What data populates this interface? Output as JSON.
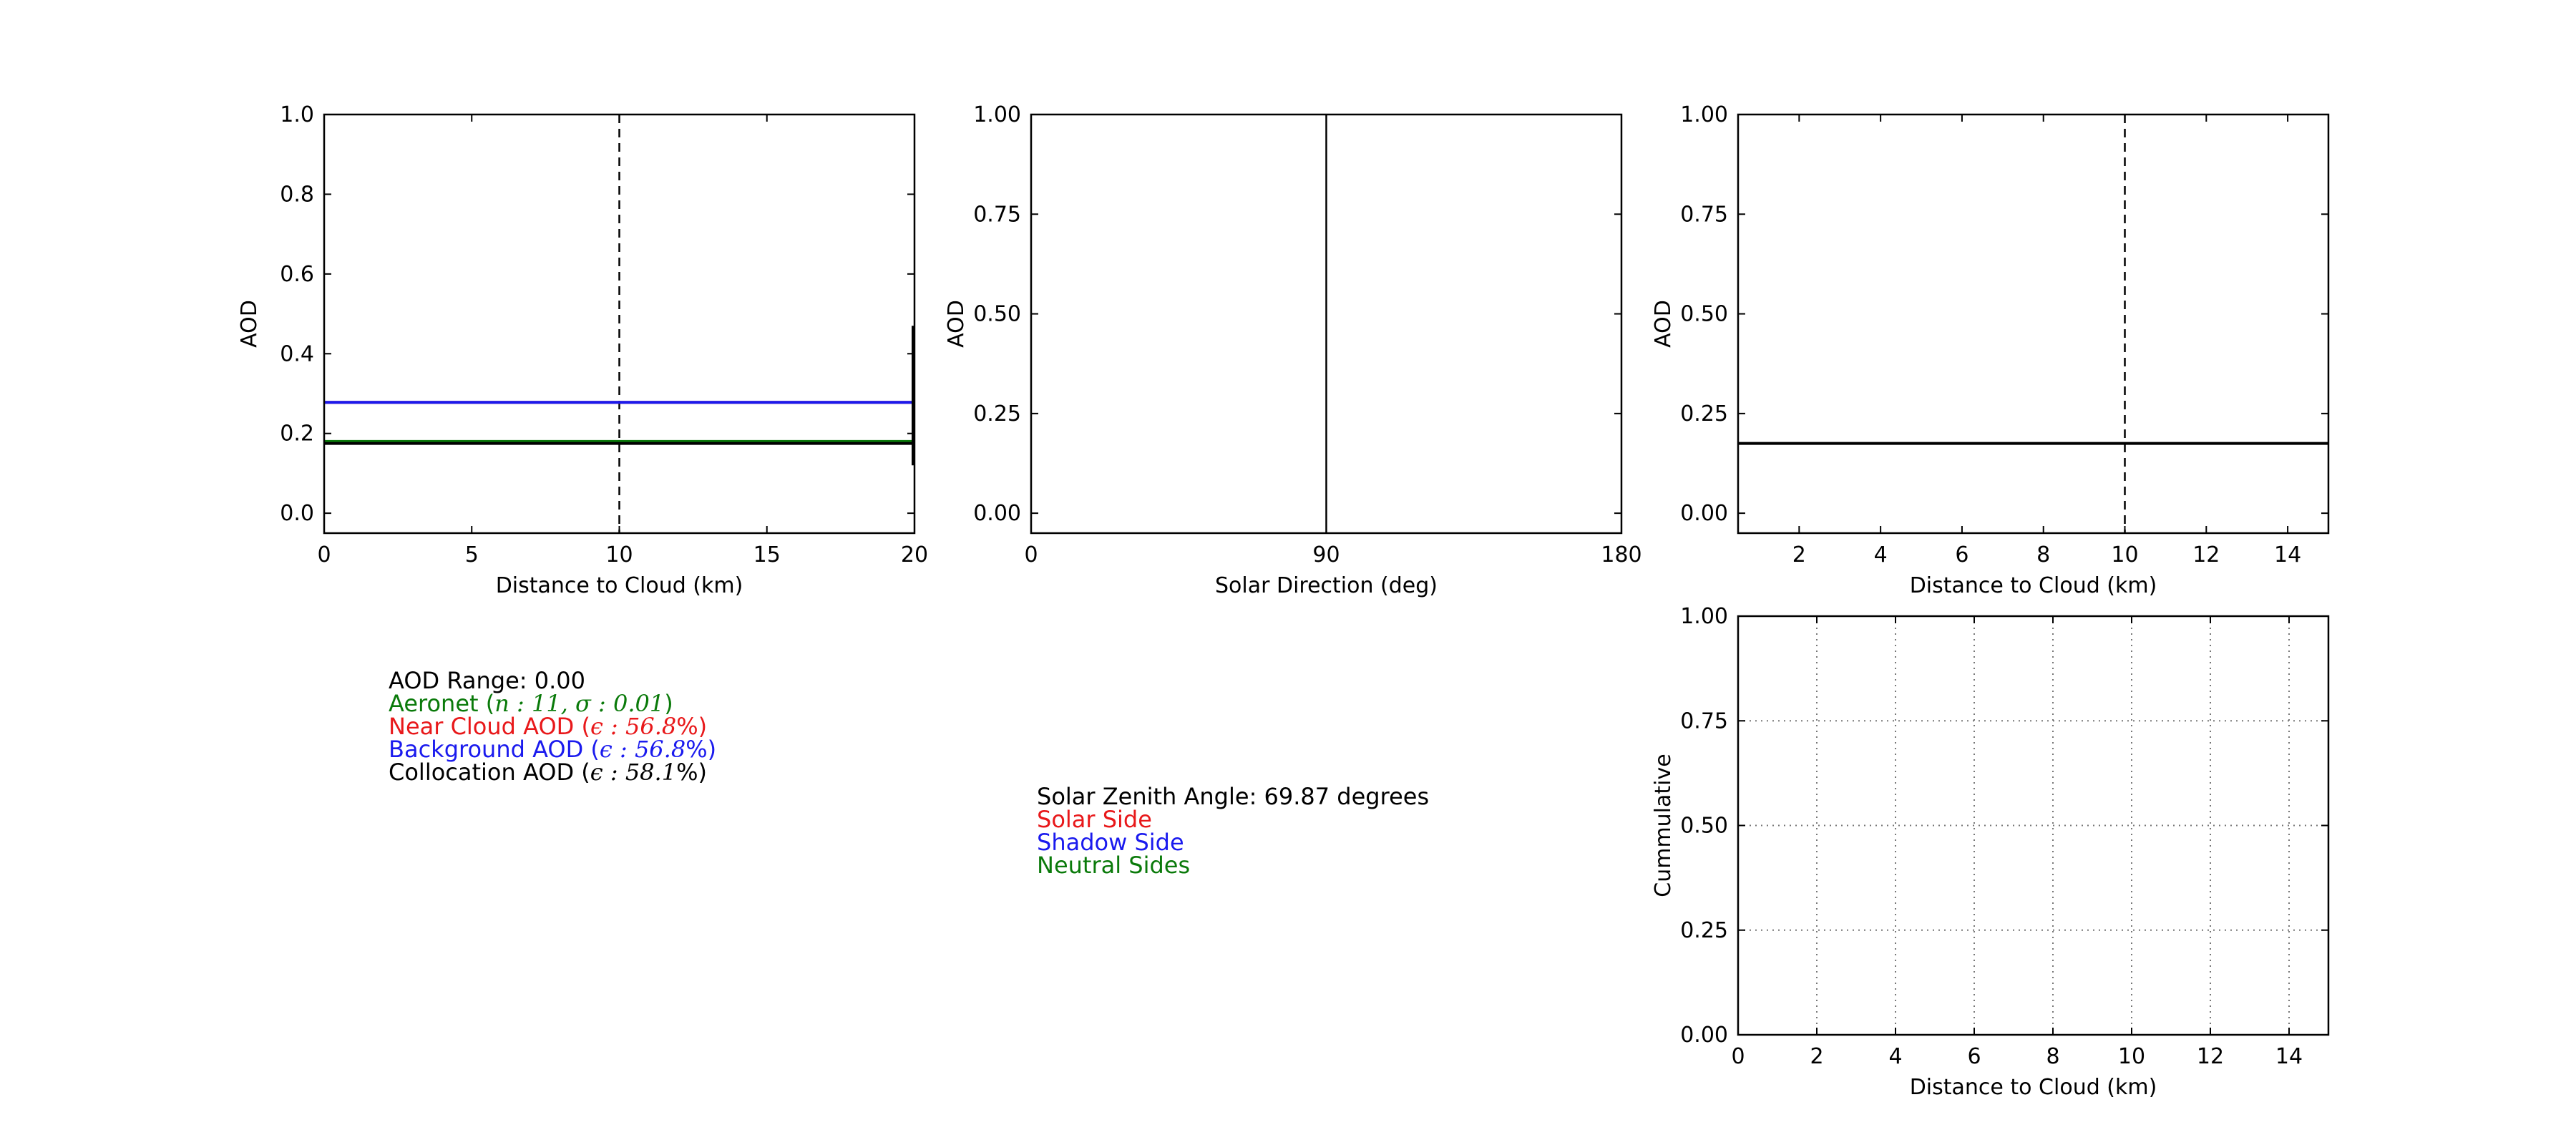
{
  "chart_data": [
    {
      "type": "line",
      "xlabel": "Distance to Cloud (km)",
      "ylabel": "AOD",
      "xlim": [
        0,
        20
      ],
      "ylim": [
        -0.05,
        1.0
      ],
      "xticks": [
        0,
        5,
        10,
        15,
        20
      ],
      "yticks": [
        0.0,
        0.2,
        0.4,
        0.6,
        0.8,
        1.0
      ],
      "ytick_labels": [
        "0.0",
        "0.2",
        "0.4",
        "0.6",
        "0.8",
        "1.0"
      ],
      "grid": false,
      "vlines": [
        {
          "x": 10,
          "style": "dashed",
          "color": "#000000"
        }
      ],
      "error_bar": {
        "x": 20,
        "y_low": 0.12,
        "y_high": 0.47,
        "color": "#000000"
      },
      "series": [
        {
          "x": [
            0,
            20
          ],
          "y": [
            0.278,
            0.278
          ],
          "color": "#e8181a"
        },
        {
          "x": [
            0,
            20
          ],
          "y": [
            0.278,
            0.278
          ],
          "color": "#1a1aee"
        },
        {
          "x": [
            0,
            20
          ],
          "y": [
            0.18,
            0.18
          ],
          "color": "#0a7a0a"
        },
        {
          "x": [
            0,
            20
          ],
          "y": [
            0.175,
            0.175
          ],
          "color": "#000000"
        }
      ]
    },
    {
      "type": "line",
      "xlabel": "Solar Direction (deg)",
      "ylabel": "AOD",
      "xlim": [
        0,
        180
      ],
      "ylim": [
        -0.05,
        1.0
      ],
      "xticks": [
        0,
        90,
        180
      ],
      "yticks": [
        0.0,
        0.25,
        0.5,
        0.75,
        1.0
      ],
      "ytick_labels": [
        "0.00",
        "0.25",
        "0.50",
        "0.75",
        "1.00"
      ],
      "grid": false,
      "vlines": [
        {
          "x": 90,
          "style": "solid",
          "color": "#000000"
        }
      ],
      "series": []
    },
    {
      "type": "line",
      "xlabel": "Distance to Cloud (km)",
      "ylabel": "AOD",
      "xlim": [
        0.5,
        15
      ],
      "ylim": [
        -0.05,
        1.0
      ],
      "xticks": [
        2,
        4,
        6,
        8,
        10,
        12,
        14
      ],
      "yticks": [
        0.0,
        0.25,
        0.5,
        0.75,
        1.0
      ],
      "ytick_labels": [
        "0.00",
        "0.25",
        "0.50",
        "0.75",
        "1.00"
      ],
      "grid": false,
      "vlines": [
        {
          "x": 10,
          "style": "dashed",
          "color": "#000000"
        }
      ],
      "series": [
        {
          "x": [
            0.5,
            15
          ],
          "y": [
            0.175,
            0.175
          ],
          "color": "#000000"
        }
      ]
    },
    {
      "type": "line",
      "xlabel": "Distance to Cloud (km)",
      "ylabel": "Cummulative",
      "xlim": [
        0,
        15
      ],
      "ylim": [
        0.0,
        1.0
      ],
      "xticks": [
        0,
        2,
        4,
        6,
        8,
        10,
        12,
        14
      ],
      "yticks": [
        0.0,
        0.25,
        0.5,
        0.75,
        1.0
      ],
      "ytick_labels": [
        "0.00",
        "0.25",
        "0.50",
        "0.75",
        "1.00"
      ],
      "grid": true,
      "vlines": [],
      "series": []
    }
  ],
  "legend_left": {
    "aod_range": "AOD Range: 0.00",
    "aeronet": {
      "prefix": "Aeronet (",
      "math": "n : 11, σ : 0.01",
      "suffix": ")",
      "color": "#0a7a0a"
    },
    "near_cloud": {
      "prefix": "Near Cloud AOD (",
      "math": "ϵ : 56.8",
      "suffix": "%)",
      "color": "#e8181a"
    },
    "background": {
      "prefix": "Background AOD (",
      "math": "ϵ : 56.8",
      "suffix": "%)",
      "color": "#1a1aee"
    },
    "collocation": {
      "prefix": "Collocation AOD (",
      "math": "ϵ : 58.1",
      "suffix": "%)",
      "color": "#000000"
    }
  },
  "legend_middle": {
    "zenith": "Solar Zenith Angle: 69.87 degrees",
    "solar_side": {
      "label": "Solar Side",
      "color": "#e8181a"
    },
    "shadow_side": {
      "label": "Shadow Side",
      "color": "#1a1aee"
    },
    "neutral_sides": {
      "label": "Neutral Sides",
      "color": "#0a7a0a"
    }
  }
}
